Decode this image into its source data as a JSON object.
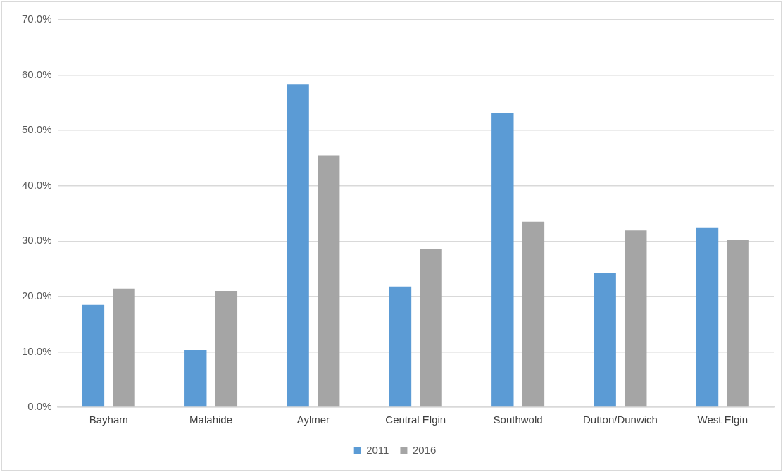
{
  "chart_data": {
    "type": "bar",
    "categories": [
      "Bayham",
      "Malahide",
      "Aylmer",
      "Central Elgin",
      "Southwold",
      "Dutton/Dunwich",
      "West Elgin"
    ],
    "series": [
      {
        "name": "2011",
        "color": "#5b9bd5",
        "values": [
          18.5,
          10.3,
          58.4,
          21.8,
          53.2,
          24.3,
          32.5
        ]
      },
      {
        "name": "2016",
        "color": "#a5a5a5",
        "values": [
          21.4,
          21.0,
          45.5,
          28.5,
          33.5,
          31.9,
          30.3
        ]
      }
    ],
    "ylim": [
      0,
      70
    ],
    "yticks": [
      {
        "value": 0,
        "label": "0.0%"
      },
      {
        "value": 10,
        "label": "10.0%"
      },
      {
        "value": 20,
        "label": "20.0%"
      },
      {
        "value": 30,
        "label": "30.0%"
      },
      {
        "value": 40,
        "label": "40.0%"
      },
      {
        "value": 50,
        "label": "50.0%"
      },
      {
        "value": 60,
        "label": "60.0%"
      },
      {
        "value": 70,
        "label": "70.0%"
      }
    ],
    "grid": "y",
    "legend": "bottom"
  }
}
